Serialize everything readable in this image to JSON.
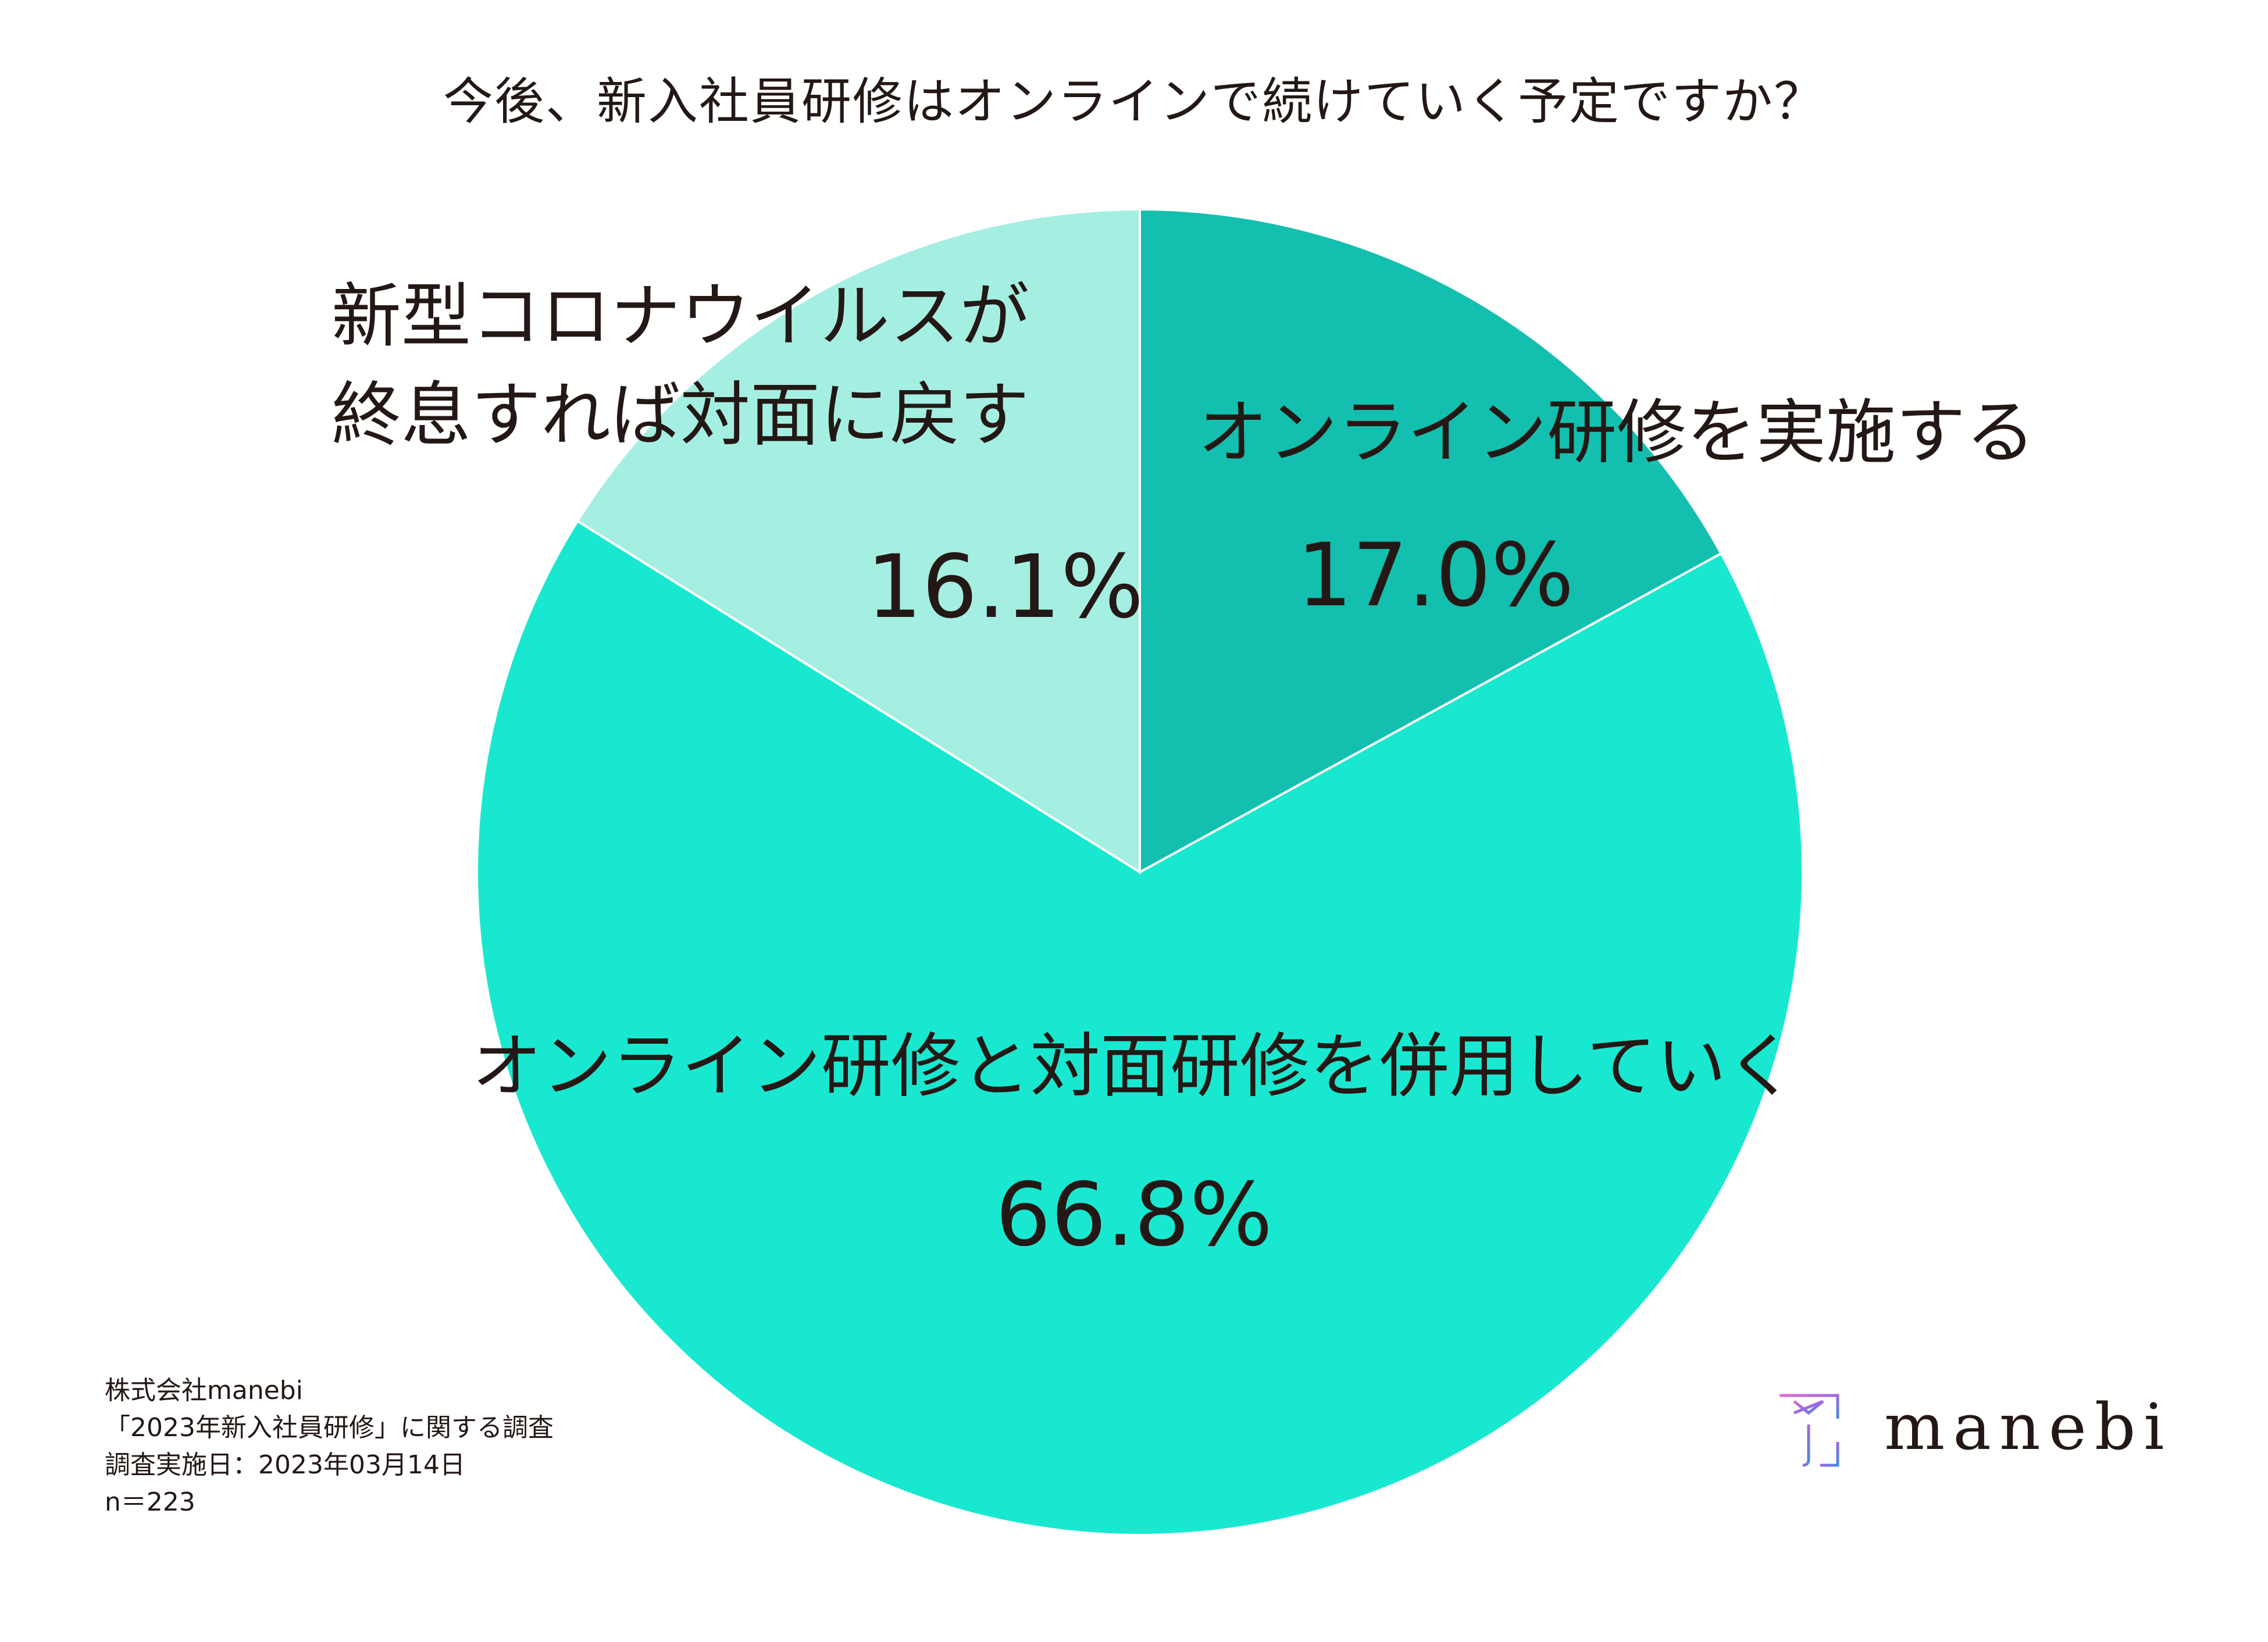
{
  "chart_data": {
    "type": "pie",
    "title": "今後、新入社員研修はオンラインで続けていく予定ですか？",
    "slices": [
      {
        "label_lines": [
          "オンライン研修を実施する"
        ],
        "value": 17.0,
        "value_label": "17.0%",
        "color": "#13bfae"
      },
      {
        "label_lines": [
          "オンライン研修と対面研修を併用していく"
        ],
        "value": 66.8,
        "value_label": "66.8%",
        "color": "#19e8d0"
      },
      {
        "label_lines": [
          "新型コロナウイルスが",
          "終息すれば対面に戻す"
        ],
        "value": 16.1,
        "value_label": "16.1%",
        "color": "#a5efe2"
      }
    ],
    "start": "12 o'clock, clockwise",
    "legend": "none"
  },
  "source_note": {
    "lines": [
      "株式会社manebi",
      "「2023年新入社員研修」に関する調査",
      "調査実施日：2023年03月14日",
      "n＝223"
    ]
  },
  "brand": {
    "name": "manebi",
    "mark_icon": "manebi-logo-icon"
  }
}
